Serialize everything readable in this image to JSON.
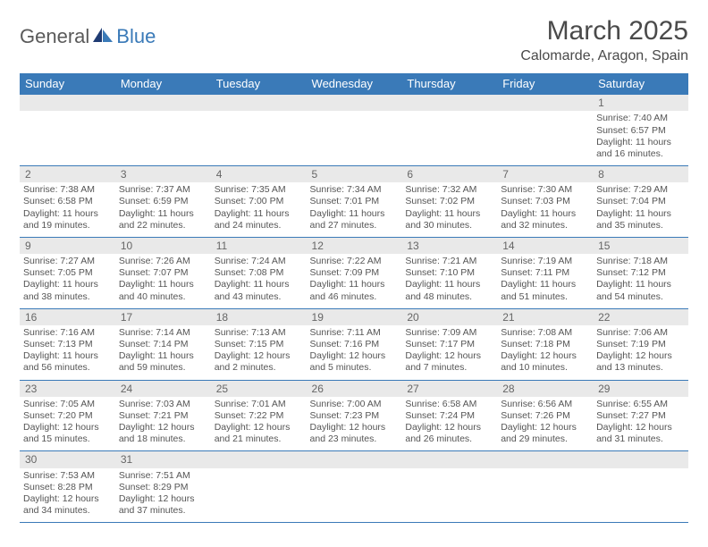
{
  "brand": {
    "part1": "General",
    "part2": "Blue"
  },
  "title": "March 2025",
  "location": "Calomarde, Aragon, Spain",
  "colors": {
    "header_bg": "#3a7ab8",
    "header_text": "#ffffff",
    "daynum_bg": "#e9e9e9",
    "border": "#3a7ab8",
    "body_text": "#555555",
    "title_text": "#4a4a4a"
  },
  "weekdays": [
    "Sunday",
    "Monday",
    "Tuesday",
    "Wednesday",
    "Thursday",
    "Friday",
    "Saturday"
  ],
  "weeks": [
    [
      null,
      null,
      null,
      null,
      null,
      null,
      {
        "n": "1",
        "sunrise": "Sunrise: 7:40 AM",
        "sunset": "Sunset: 6:57 PM",
        "day1": "Daylight: 11 hours",
        "day2": "and 16 minutes."
      }
    ],
    [
      {
        "n": "2",
        "sunrise": "Sunrise: 7:38 AM",
        "sunset": "Sunset: 6:58 PM",
        "day1": "Daylight: 11 hours",
        "day2": "and 19 minutes."
      },
      {
        "n": "3",
        "sunrise": "Sunrise: 7:37 AM",
        "sunset": "Sunset: 6:59 PM",
        "day1": "Daylight: 11 hours",
        "day2": "and 22 minutes."
      },
      {
        "n": "4",
        "sunrise": "Sunrise: 7:35 AM",
        "sunset": "Sunset: 7:00 PM",
        "day1": "Daylight: 11 hours",
        "day2": "and 24 minutes."
      },
      {
        "n": "5",
        "sunrise": "Sunrise: 7:34 AM",
        "sunset": "Sunset: 7:01 PM",
        "day1": "Daylight: 11 hours",
        "day2": "and 27 minutes."
      },
      {
        "n": "6",
        "sunrise": "Sunrise: 7:32 AM",
        "sunset": "Sunset: 7:02 PM",
        "day1": "Daylight: 11 hours",
        "day2": "and 30 minutes."
      },
      {
        "n": "7",
        "sunrise": "Sunrise: 7:30 AM",
        "sunset": "Sunset: 7:03 PM",
        "day1": "Daylight: 11 hours",
        "day2": "and 32 minutes."
      },
      {
        "n": "8",
        "sunrise": "Sunrise: 7:29 AM",
        "sunset": "Sunset: 7:04 PM",
        "day1": "Daylight: 11 hours",
        "day2": "and 35 minutes."
      }
    ],
    [
      {
        "n": "9",
        "sunrise": "Sunrise: 7:27 AM",
        "sunset": "Sunset: 7:05 PM",
        "day1": "Daylight: 11 hours",
        "day2": "and 38 minutes."
      },
      {
        "n": "10",
        "sunrise": "Sunrise: 7:26 AM",
        "sunset": "Sunset: 7:07 PM",
        "day1": "Daylight: 11 hours",
        "day2": "and 40 minutes."
      },
      {
        "n": "11",
        "sunrise": "Sunrise: 7:24 AM",
        "sunset": "Sunset: 7:08 PM",
        "day1": "Daylight: 11 hours",
        "day2": "and 43 minutes."
      },
      {
        "n": "12",
        "sunrise": "Sunrise: 7:22 AM",
        "sunset": "Sunset: 7:09 PM",
        "day1": "Daylight: 11 hours",
        "day2": "and 46 minutes."
      },
      {
        "n": "13",
        "sunrise": "Sunrise: 7:21 AM",
        "sunset": "Sunset: 7:10 PM",
        "day1": "Daylight: 11 hours",
        "day2": "and 48 minutes."
      },
      {
        "n": "14",
        "sunrise": "Sunrise: 7:19 AM",
        "sunset": "Sunset: 7:11 PM",
        "day1": "Daylight: 11 hours",
        "day2": "and 51 minutes."
      },
      {
        "n": "15",
        "sunrise": "Sunrise: 7:18 AM",
        "sunset": "Sunset: 7:12 PM",
        "day1": "Daylight: 11 hours",
        "day2": "and 54 minutes."
      }
    ],
    [
      {
        "n": "16",
        "sunrise": "Sunrise: 7:16 AM",
        "sunset": "Sunset: 7:13 PM",
        "day1": "Daylight: 11 hours",
        "day2": "and 56 minutes."
      },
      {
        "n": "17",
        "sunrise": "Sunrise: 7:14 AM",
        "sunset": "Sunset: 7:14 PM",
        "day1": "Daylight: 11 hours",
        "day2": "and 59 minutes."
      },
      {
        "n": "18",
        "sunrise": "Sunrise: 7:13 AM",
        "sunset": "Sunset: 7:15 PM",
        "day1": "Daylight: 12 hours",
        "day2": "and 2 minutes."
      },
      {
        "n": "19",
        "sunrise": "Sunrise: 7:11 AM",
        "sunset": "Sunset: 7:16 PM",
        "day1": "Daylight: 12 hours",
        "day2": "and 5 minutes."
      },
      {
        "n": "20",
        "sunrise": "Sunrise: 7:09 AM",
        "sunset": "Sunset: 7:17 PM",
        "day1": "Daylight: 12 hours",
        "day2": "and 7 minutes."
      },
      {
        "n": "21",
        "sunrise": "Sunrise: 7:08 AM",
        "sunset": "Sunset: 7:18 PM",
        "day1": "Daylight: 12 hours",
        "day2": "and 10 minutes."
      },
      {
        "n": "22",
        "sunrise": "Sunrise: 7:06 AM",
        "sunset": "Sunset: 7:19 PM",
        "day1": "Daylight: 12 hours",
        "day2": "and 13 minutes."
      }
    ],
    [
      {
        "n": "23",
        "sunrise": "Sunrise: 7:05 AM",
        "sunset": "Sunset: 7:20 PM",
        "day1": "Daylight: 12 hours",
        "day2": "and 15 minutes."
      },
      {
        "n": "24",
        "sunrise": "Sunrise: 7:03 AM",
        "sunset": "Sunset: 7:21 PM",
        "day1": "Daylight: 12 hours",
        "day2": "and 18 minutes."
      },
      {
        "n": "25",
        "sunrise": "Sunrise: 7:01 AM",
        "sunset": "Sunset: 7:22 PM",
        "day1": "Daylight: 12 hours",
        "day2": "and 21 minutes."
      },
      {
        "n": "26",
        "sunrise": "Sunrise: 7:00 AM",
        "sunset": "Sunset: 7:23 PM",
        "day1": "Daylight: 12 hours",
        "day2": "and 23 minutes."
      },
      {
        "n": "27",
        "sunrise": "Sunrise: 6:58 AM",
        "sunset": "Sunset: 7:24 PM",
        "day1": "Daylight: 12 hours",
        "day2": "and 26 minutes."
      },
      {
        "n": "28",
        "sunrise": "Sunrise: 6:56 AM",
        "sunset": "Sunset: 7:26 PM",
        "day1": "Daylight: 12 hours",
        "day2": "and 29 minutes."
      },
      {
        "n": "29",
        "sunrise": "Sunrise: 6:55 AM",
        "sunset": "Sunset: 7:27 PM",
        "day1": "Daylight: 12 hours",
        "day2": "and 31 minutes."
      }
    ],
    [
      {
        "n": "30",
        "sunrise": "Sunrise: 7:53 AM",
        "sunset": "Sunset: 8:28 PM",
        "day1": "Daylight: 12 hours",
        "day2": "and 34 minutes."
      },
      {
        "n": "31",
        "sunrise": "Sunrise: 7:51 AM",
        "sunset": "Sunset: 8:29 PM",
        "day1": "Daylight: 12 hours",
        "day2": "and 37 minutes."
      },
      null,
      null,
      null,
      null,
      null
    ]
  ]
}
